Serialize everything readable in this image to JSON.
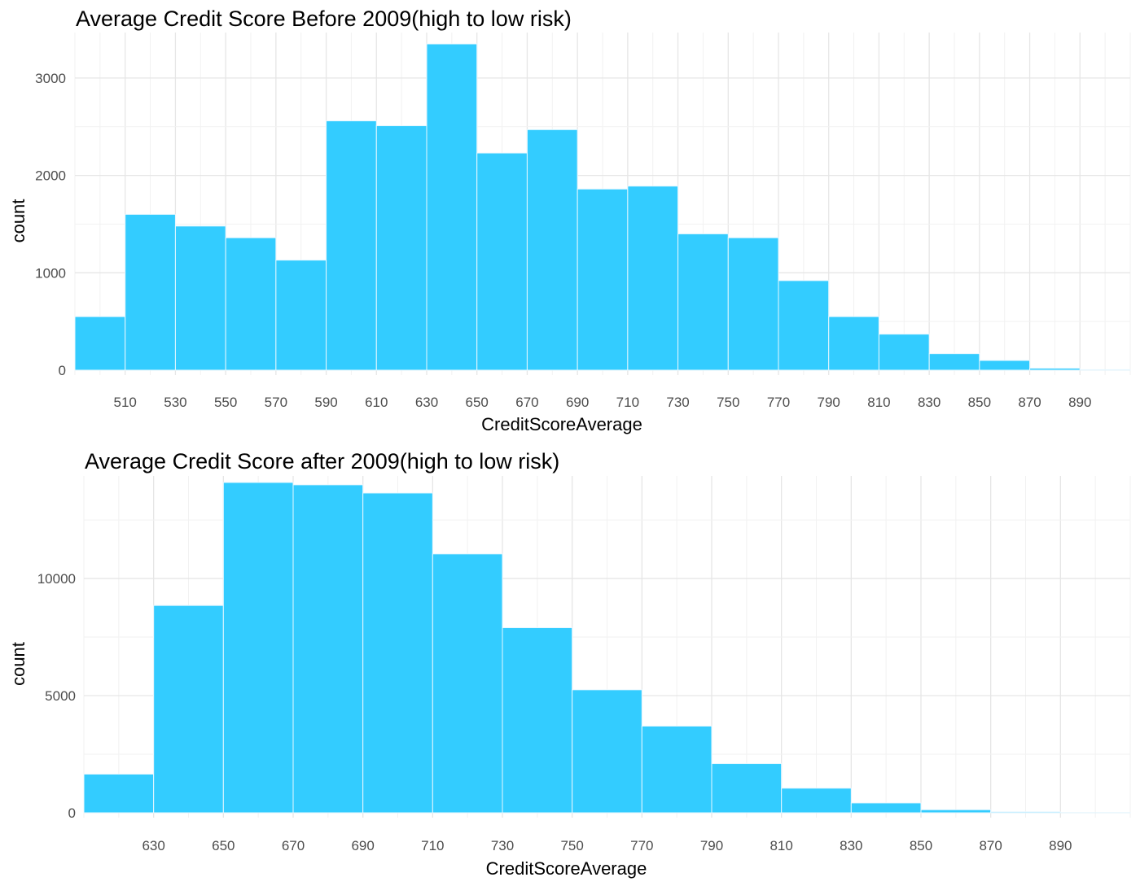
{
  "chart_data": [
    {
      "type": "bar",
      "title": "Average Credit Score Before 2009(high to low risk)",
      "xlabel": "CreditScoreAverage",
      "ylabel": "count",
      "bin_width": 20,
      "xlim": [
        490,
        910
      ],
      "ylim": [
        0,
        3400
      ],
      "yticks": [
        0,
        1000,
        2000,
        3000
      ],
      "xticks": [
        510,
        530,
        550,
        570,
        590,
        610,
        630,
        650,
        670,
        690,
        710,
        730,
        750,
        770,
        790,
        810,
        830,
        850,
        870,
        890
      ],
      "bins": [
        {
          "x0": 490,
          "x1": 510,
          "count": 550
        },
        {
          "x0": 510,
          "x1": 530,
          "count": 1600
        },
        {
          "x0": 530,
          "x1": 550,
          "count": 1480
        },
        {
          "x0": 550,
          "x1": 570,
          "count": 1360
        },
        {
          "x0": 570,
          "x1": 590,
          "count": 1130
        },
        {
          "x0": 590,
          "x1": 610,
          "count": 2560
        },
        {
          "x0": 610,
          "x1": 630,
          "count": 2510
        },
        {
          "x0": 630,
          "x1": 650,
          "count": 3350
        },
        {
          "x0": 650,
          "x1": 670,
          "count": 2230
        },
        {
          "x0": 670,
          "x1": 690,
          "count": 2470
        },
        {
          "x0": 690,
          "x1": 710,
          "count": 1860
        },
        {
          "x0": 710,
          "x1": 730,
          "count": 1890
        },
        {
          "x0": 730,
          "x1": 750,
          "count": 1400
        },
        {
          "x0": 750,
          "x1": 770,
          "count": 1360
        },
        {
          "x0": 770,
          "x1": 790,
          "count": 920
        },
        {
          "x0": 790,
          "x1": 810,
          "count": 550
        },
        {
          "x0": 810,
          "x1": 830,
          "count": 370
        },
        {
          "x0": 830,
          "x1": 850,
          "count": 170
        },
        {
          "x0": 850,
          "x1": 870,
          "count": 100
        },
        {
          "x0": 870,
          "x1": 890,
          "count": 20
        },
        {
          "x0": 890,
          "x1": 910,
          "count": 5
        }
      ],
      "grid": true,
      "fill_color": "#33CCFF",
      "border_color": "#E6F7FF"
    },
    {
      "type": "bar",
      "title": "Average Credit Score after 2009(high to low risk)",
      "xlabel": "CreditScoreAverage",
      "ylabel": "count",
      "bin_width": 20,
      "xlim": [
        610,
        910
      ],
      "ylim": [
        0,
        14100
      ],
      "yticks": [
        0,
        5000,
        10000
      ],
      "xticks": [
        630,
        650,
        670,
        690,
        710,
        730,
        750,
        770,
        790,
        810,
        830,
        850,
        870,
        890
      ],
      "bins": [
        {
          "x0": 610,
          "x1": 630,
          "count": 1650
        },
        {
          "x0": 630,
          "x1": 650,
          "count": 8850
        },
        {
          "x0": 650,
          "x1": 670,
          "count": 14100
        },
        {
          "x0": 670,
          "x1": 690,
          "count": 14000
        },
        {
          "x0": 690,
          "x1": 710,
          "count": 13650
        },
        {
          "x0": 710,
          "x1": 730,
          "count": 11050
        },
        {
          "x0": 730,
          "x1": 750,
          "count": 7900
        },
        {
          "x0": 750,
          "x1": 770,
          "count": 5250
        },
        {
          "x0": 770,
          "x1": 790,
          "count": 3700
        },
        {
          "x0": 790,
          "x1": 810,
          "count": 2100
        },
        {
          "x0": 810,
          "x1": 830,
          "count": 1050
        },
        {
          "x0": 830,
          "x1": 850,
          "count": 420
        },
        {
          "x0": 850,
          "x1": 870,
          "count": 130
        },
        {
          "x0": 870,
          "x1": 890,
          "count": 40
        },
        {
          "x0": 890,
          "x1": 910,
          "count": 5
        }
      ],
      "grid": true,
      "fill_color": "#33CCFF",
      "border_color": "#E6F7FF"
    }
  ]
}
